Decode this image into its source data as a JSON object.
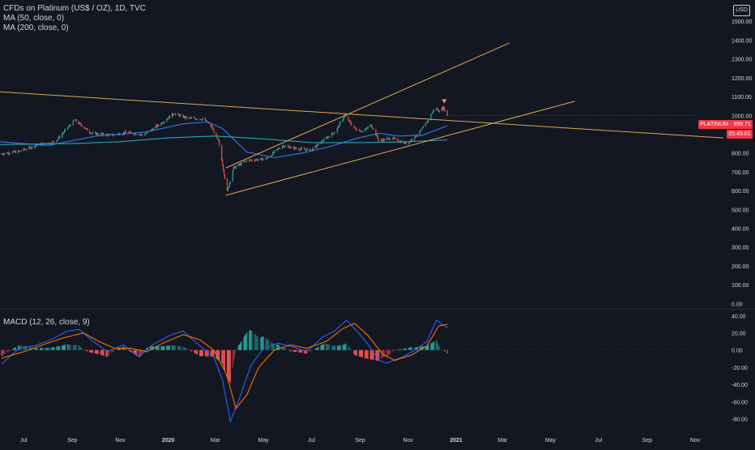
{
  "legend": {
    "symbol": "CFDs on Platinum (US$ / OZ), 1D, TVC",
    "ma50": "MA (50, close, 0)",
    "ma200": "MA (200, close, 0)",
    "macd": "MACD (12, 26, close, 9)"
  },
  "currency_button": "USD",
  "price_tag": {
    "label": "PLATINUM · 999.71",
    "countdown": "05:45:01",
    "value": 999.71
  },
  "colors": {
    "background": "#131722",
    "axis_text": "#d1d4dc",
    "candle_up": "#26a69a",
    "candle_down": "#ef5350",
    "ma50": "#3179f5",
    "ma200": "#26a5b5",
    "trendline": "#e0a84e",
    "macd_line": "#2962ff",
    "signal_line": "#ff6d00",
    "hist_up": "#26a69a",
    "hist_down": "#ef5350",
    "price_tag": "#f23645"
  },
  "chart_data": [
    {
      "type": "candlestick",
      "title": "CFDs on Platinum (US$ / OZ), 1D, TVC",
      "y_axis": {
        "ticks": [
          "1500.00",
          "1400.00",
          "1300.00",
          "1200.00",
          "1100.00",
          "1000.00",
          "900.00",
          "800.00",
          "700.00",
          "600.00",
          "500.00",
          "400.00",
          "300.00",
          "200.00",
          "100.00",
          "0.00"
        ],
        "ylim": [
          -20,
          1570
        ]
      },
      "x_axis": {
        "ticks": [
          "Jul",
          "Sep",
          "Nov",
          "2020",
          "Mar",
          "May",
          "Jul",
          "Sep",
          "Nov",
          "2021",
          "Mar",
          "May",
          "Jul",
          "Sep",
          "Nov"
        ],
        "range": [
          "2019-06-01",
          "2021-12-07"
        ]
      },
      "price_anchors": [
        {
          "date": "2019-06-01",
          "close": 795
        },
        {
          "date": "2019-06-25",
          "close": 808
        },
        {
          "date": "2019-07-20",
          "close": 845
        },
        {
          "date": "2019-08-10",
          "close": 860
        },
        {
          "date": "2019-09-04",
          "close": 975
        },
        {
          "date": "2019-09-25",
          "close": 905
        },
        {
          "date": "2019-10-20",
          "close": 895
        },
        {
          "date": "2019-11-10",
          "close": 910
        },
        {
          "date": "2019-12-01",
          "close": 895
        },
        {
          "date": "2019-12-25",
          "close": 965
        },
        {
          "date": "2020-01-08",
          "close": 1010
        },
        {
          "date": "2020-01-25",
          "close": 985
        },
        {
          "date": "2020-02-15",
          "close": 980
        },
        {
          "date": "2020-02-25",
          "close": 940
        },
        {
          "date": "2020-03-05",
          "close": 860
        },
        {
          "date": "2020-03-16",
          "close": 595
        },
        {
          "date": "2020-03-24",
          "close": 720
        },
        {
          "date": "2020-04-10",
          "close": 760
        },
        {
          "date": "2020-05-05",
          "close": 770
        },
        {
          "date": "2020-05-25",
          "close": 840
        },
        {
          "date": "2020-06-10",
          "close": 825
        },
        {
          "date": "2020-07-01",
          "close": 815
        },
        {
          "date": "2020-07-20",
          "close": 880
        },
        {
          "date": "2020-08-01",
          "close": 915
        },
        {
          "date": "2020-08-12",
          "close": 1000
        },
        {
          "date": "2020-08-25",
          "close": 930
        },
        {
          "date": "2020-09-05",
          "close": 915
        },
        {
          "date": "2020-09-15",
          "close": 950
        },
        {
          "date": "2020-09-25",
          "close": 865
        },
        {
          "date": "2020-10-10",
          "close": 880
        },
        {
          "date": "2020-10-30",
          "close": 850
        },
        {
          "date": "2020-11-15",
          "close": 905
        },
        {
          "date": "2020-11-25",
          "close": 965
        },
        {
          "date": "2020-12-05",
          "close": 1040
        },
        {
          "date": "2020-12-10",
          "close": 1025
        },
        {
          "date": "2020-12-16",
          "close": 1040
        },
        {
          "date": "2020-12-21",
          "close": 999.71
        }
      ],
      "series": [
        {
          "name": "MA (50, close, 0)",
          "color": "#3179f5",
          "points": [
            [
              "2019-06-01",
              860
            ],
            [
              "2019-08-01",
              840
            ],
            [
              "2019-10-01",
              890
            ],
            [
              "2019-12-01",
              910
            ],
            [
              "2020-01-20",
              955
            ],
            [
              "2020-02-20",
              965
            ],
            [
              "2020-03-10",
              930
            ],
            [
              "2020-04-10",
              805
            ],
            [
              "2020-05-15",
              775
            ],
            [
              "2020-06-20",
              800
            ],
            [
              "2020-07-25",
              835
            ],
            [
              "2020-08-25",
              875
            ],
            [
              "2020-09-25",
              905
            ],
            [
              "2020-10-20",
              890
            ],
            [
              "2020-11-20",
              895
            ],
            [
              "2020-12-21",
              945
            ]
          ]
        },
        {
          "name": "MA (200, close, 0)",
          "color": "#26a5b5",
          "points": [
            [
              "2019-06-01",
              845
            ],
            [
              "2019-09-01",
              850
            ],
            [
              "2019-11-01",
              860
            ],
            [
              "2020-01-01",
              880
            ],
            [
              "2020-03-01",
              890
            ],
            [
              "2020-05-01",
              875
            ],
            [
              "2020-07-01",
              855
            ],
            [
              "2020-09-01",
              855
            ],
            [
              "2020-11-01",
              860
            ],
            [
              "2020-12-21",
              870
            ]
          ]
        }
      ],
      "trendlines": [
        {
          "from": [
            "2019-06-01",
            1125
          ],
          "to": [
            "2021-12-07",
            880
          ]
        },
        {
          "from": [
            "2020-03-14",
            720
          ],
          "to": [
            "2021-03-10",
            1385
          ]
        },
        {
          "from": [
            "2020-03-14",
            575
          ],
          "to": [
            "2021-06-01",
            1075
          ]
        }
      ]
    },
    {
      "type": "macd",
      "title": "MACD (12, 26, close, 9)",
      "y_axis": {
        "ticks": [
          "40.00",
          "20.00",
          "0.00",
          "-20.00",
          "-40.00",
          "-60.00",
          "-80.00"
        ],
        "ylim": [
          -88,
          46
        ]
      },
      "macd_anchors": [
        {
          "date": "2019-06-01",
          "v": -18
        },
        {
          "date": "2019-06-25",
          "v": 2
        },
        {
          "date": "2019-07-15",
          "v": 5
        },
        {
          "date": "2019-08-05",
          "v": 12
        },
        {
          "date": "2019-08-25",
          "v": 22
        },
        {
          "date": "2019-09-10",
          "v": 24
        },
        {
          "date": "2019-09-25",
          "v": 12
        },
        {
          "date": "2019-10-15",
          "v": -2
        },
        {
          "date": "2019-11-05",
          "v": 6
        },
        {
          "date": "2019-11-25",
          "v": -8
        },
        {
          "date": "2019-12-10",
          "v": 5
        },
        {
          "date": "2020-01-05",
          "v": 18
        },
        {
          "date": "2020-01-20",
          "v": 22
        },
        {
          "date": "2020-02-10",
          "v": 5
        },
        {
          "date": "2020-02-28",
          "v": -8
        },
        {
          "date": "2020-03-10",
          "v": -35
        },
        {
          "date": "2020-03-20",
          "v": -83
        },
        {
          "date": "2020-04-01",
          "v": -55
        },
        {
          "date": "2020-04-15",
          "v": -18
        },
        {
          "date": "2020-05-01",
          "v": 2
        },
        {
          "date": "2020-05-20",
          "v": 8
        },
        {
          "date": "2020-06-10",
          "v": 3
        },
        {
          "date": "2020-06-25",
          "v": -2
        },
        {
          "date": "2020-07-15",
          "v": 15
        },
        {
          "date": "2020-07-30",
          "v": 22
        },
        {
          "date": "2020-08-15",
          "v": 35
        },
        {
          "date": "2020-08-25",
          "v": 25
        },
        {
          "date": "2020-09-10",
          "v": 8
        },
        {
          "date": "2020-09-25",
          "v": -12
        },
        {
          "date": "2020-10-05",
          "v": -15
        },
        {
          "date": "2020-10-25",
          "v": -8
        },
        {
          "date": "2020-11-10",
          "v": 0
        },
        {
          "date": "2020-11-25",
          "v": 10
        },
        {
          "date": "2020-12-07",
          "v": 35
        },
        {
          "date": "2020-12-14",
          "v": 30
        },
        {
          "date": "2020-12-21",
          "v": 26
        }
      ],
      "signal_anchors": [
        {
          "date": "2019-06-01",
          "v": -10
        },
        {
          "date": "2019-07-01",
          "v": -2
        },
        {
          "date": "2019-07-25",
          "v": 6
        },
        {
          "date": "2019-08-20",
          "v": 14
        },
        {
          "date": "2019-09-15",
          "v": 20
        },
        {
          "date": "2019-10-05",
          "v": 10
        },
        {
          "date": "2019-10-25",
          "v": 2
        },
        {
          "date": "2019-11-15",
          "v": 2
        },
        {
          "date": "2019-12-05",
          "v": -2
        },
        {
          "date": "2019-12-25",
          "v": 8
        },
        {
          "date": "2020-01-20",
          "v": 18
        },
        {
          "date": "2020-02-10",
          "v": 12
        },
        {
          "date": "2020-02-28",
          "v": 0
        },
        {
          "date": "2020-03-15",
          "v": -28
        },
        {
          "date": "2020-03-27",
          "v": -68
        },
        {
          "date": "2020-04-10",
          "v": -52
        },
        {
          "date": "2020-04-25",
          "v": -20
        },
        {
          "date": "2020-05-15",
          "v": 0
        },
        {
          "date": "2020-06-05",
          "v": 6
        },
        {
          "date": "2020-06-25",
          "v": 2
        },
        {
          "date": "2020-07-20",
          "v": 10
        },
        {
          "date": "2020-08-10",
          "v": 25
        },
        {
          "date": "2020-08-25",
          "v": 31
        },
        {
          "date": "2020-09-10",
          "v": 18
        },
        {
          "date": "2020-09-30",
          "v": -5
        },
        {
          "date": "2020-10-15",
          "v": -12
        },
        {
          "date": "2020-11-05",
          "v": -6
        },
        {
          "date": "2020-11-25",
          "v": 5
        },
        {
          "date": "2020-12-10",
          "v": 28
        },
        {
          "date": "2020-12-21",
          "v": 30
        }
      ]
    }
  ]
}
